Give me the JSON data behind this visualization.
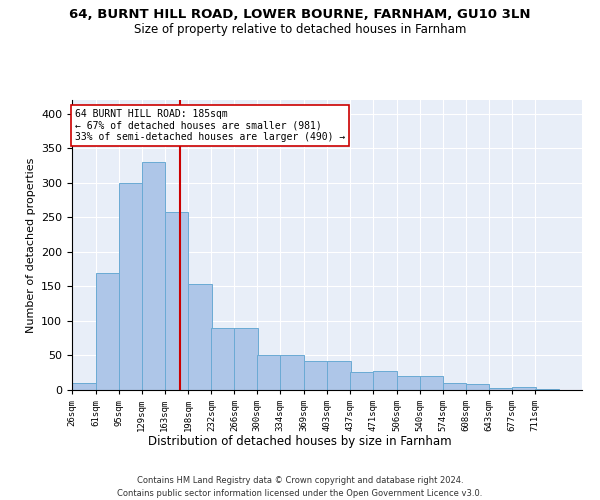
{
  "title1": "64, BURNT HILL ROAD, LOWER BOURNE, FARNHAM, GU10 3LN",
  "title2": "Size of property relative to detached houses in Farnham",
  "xlabel": "Distribution of detached houses by size in Farnham",
  "ylabel": "Number of detached properties",
  "footer1": "Contains HM Land Registry data © Crown copyright and database right 2024.",
  "footer2": "Contains public sector information licensed under the Open Government Licence v3.0.",
  "annotation_line1": "64 BURNT HILL ROAD: 185sqm",
  "annotation_line2": "← 67% of detached houses are smaller (981)",
  "annotation_line3": "33% of semi-detached houses are larger (490) →",
  "bar_color": "#aec6e8",
  "bar_edge_color": "#6aaad4",
  "redline_color": "#cc0000",
  "bg_color": "#e8eef8",
  "grid_color": "#ffffff",
  "annotation_box_color": "#cc0000",
  "bins": [
    "26sqm",
    "61sqm",
    "95sqm",
    "129sqm",
    "163sqm",
    "198sqm",
    "232sqm",
    "266sqm",
    "300sqm",
    "334sqm",
    "369sqm",
    "403sqm",
    "437sqm",
    "471sqm",
    "506sqm",
    "540sqm",
    "574sqm",
    "608sqm",
    "643sqm",
    "677sqm",
    "711sqm"
  ],
  "bin_edges": [
    26,
    61,
    95,
    129,
    163,
    198,
    232,
    266,
    300,
    334,
    369,
    403,
    437,
    471,
    506,
    540,
    574,
    608,
    643,
    677,
    711,
    745
  ],
  "heights": [
    10,
    170,
    300,
    330,
    258,
    153,
    90,
    90,
    50,
    50,
    42,
    42,
    26,
    28,
    20,
    20,
    10,
    9,
    3,
    4,
    2
  ],
  "redline_x": 185,
  "ylim": [
    0,
    420
  ],
  "yticks": [
    0,
    50,
    100,
    150,
    200,
    250,
    300,
    350,
    400
  ]
}
